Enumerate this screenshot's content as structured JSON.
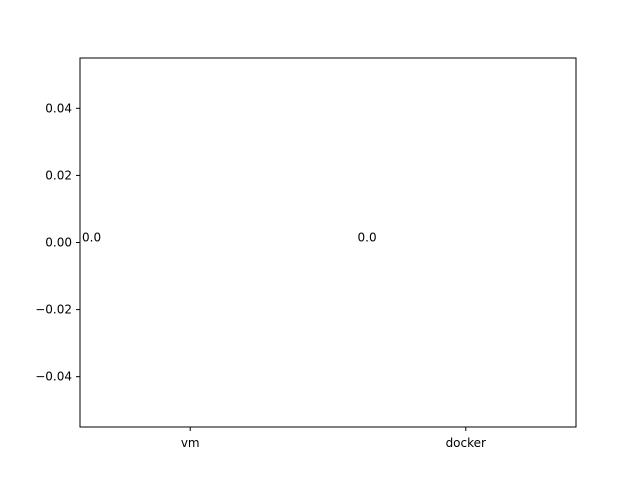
{
  "chart_data": {
    "type": "bar",
    "categories": [
      "vm",
      "docker"
    ],
    "values": [
      0.0,
      0.0
    ],
    "data_labels": [
      "0.0",
      "0.0"
    ],
    "title": "",
    "xlabel": "",
    "ylabel": "",
    "ylim": [
      -0.055,
      0.055
    ],
    "yticks": [
      {
        "value": -0.04,
        "label": "−0.04"
      },
      {
        "value": -0.02,
        "label": "−0.02"
      },
      {
        "value": 0.0,
        "label": "0.00"
      },
      {
        "value": 0.02,
        "label": "0.02"
      },
      {
        "value": 0.04,
        "label": "0.04"
      }
    ],
    "grid": false,
    "colors": {
      "bar": "#1f77b4",
      "axes": "#000000",
      "text": "#000000"
    }
  }
}
